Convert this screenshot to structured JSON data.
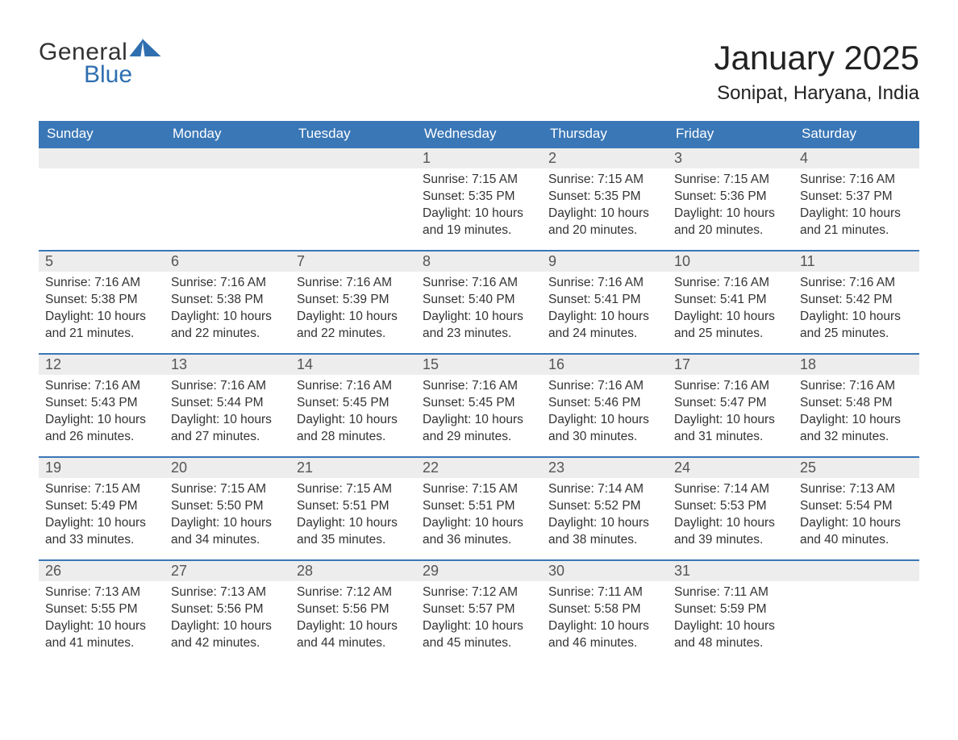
{
  "brand": {
    "word1": "General",
    "word2": "Blue"
  },
  "title": "January 2025",
  "location": "Sonipat, Haryana, India",
  "colors": {
    "header_bg": "#3a77b6",
    "header_text": "#ffffff",
    "daynum_bg": "#ededed",
    "daynum_border": "#3a77b6",
    "body_text": "#333333",
    "brand_blue": "#2f6fb0",
    "page_bg": "#ffffff"
  },
  "typography": {
    "month_title_fontsize": 42,
    "location_fontsize": 24,
    "weekday_fontsize": 17,
    "daynum_fontsize": 18,
    "body_fontsize": 15.5
  },
  "weekdays": [
    "Sunday",
    "Monday",
    "Tuesday",
    "Wednesday",
    "Thursday",
    "Friday",
    "Saturday"
  ],
  "labels": {
    "sunrise": "Sunrise:",
    "sunset": "Sunset:",
    "daylight": "Daylight:"
  },
  "weeks": [
    [
      {
        "empty": true
      },
      {
        "empty": true
      },
      {
        "empty": true
      },
      {
        "n": "1",
        "sunrise": "7:15 AM",
        "sunset": "5:35 PM",
        "daylight": "10 hours and 19 minutes."
      },
      {
        "n": "2",
        "sunrise": "7:15 AM",
        "sunset": "5:35 PM",
        "daylight": "10 hours and 20 minutes."
      },
      {
        "n": "3",
        "sunrise": "7:15 AM",
        "sunset": "5:36 PM",
        "daylight": "10 hours and 20 minutes."
      },
      {
        "n": "4",
        "sunrise": "7:16 AM",
        "sunset": "5:37 PM",
        "daylight": "10 hours and 21 minutes."
      }
    ],
    [
      {
        "n": "5",
        "sunrise": "7:16 AM",
        "sunset": "5:38 PM",
        "daylight": "10 hours and 21 minutes."
      },
      {
        "n": "6",
        "sunrise": "7:16 AM",
        "sunset": "5:38 PM",
        "daylight": "10 hours and 22 minutes."
      },
      {
        "n": "7",
        "sunrise": "7:16 AM",
        "sunset": "5:39 PM",
        "daylight": "10 hours and 22 minutes."
      },
      {
        "n": "8",
        "sunrise": "7:16 AM",
        "sunset": "5:40 PM",
        "daylight": "10 hours and 23 minutes."
      },
      {
        "n": "9",
        "sunrise": "7:16 AM",
        "sunset": "5:41 PM",
        "daylight": "10 hours and 24 minutes."
      },
      {
        "n": "10",
        "sunrise": "7:16 AM",
        "sunset": "5:41 PM",
        "daylight": "10 hours and 25 minutes."
      },
      {
        "n": "11",
        "sunrise": "7:16 AM",
        "sunset": "5:42 PM",
        "daylight": "10 hours and 25 minutes."
      }
    ],
    [
      {
        "n": "12",
        "sunrise": "7:16 AM",
        "sunset": "5:43 PM",
        "daylight": "10 hours and 26 minutes."
      },
      {
        "n": "13",
        "sunrise": "7:16 AM",
        "sunset": "5:44 PM",
        "daylight": "10 hours and 27 minutes."
      },
      {
        "n": "14",
        "sunrise": "7:16 AM",
        "sunset": "5:45 PM",
        "daylight": "10 hours and 28 minutes."
      },
      {
        "n": "15",
        "sunrise": "7:16 AM",
        "sunset": "5:45 PM",
        "daylight": "10 hours and 29 minutes."
      },
      {
        "n": "16",
        "sunrise": "7:16 AM",
        "sunset": "5:46 PM",
        "daylight": "10 hours and 30 minutes."
      },
      {
        "n": "17",
        "sunrise": "7:16 AM",
        "sunset": "5:47 PM",
        "daylight": "10 hours and 31 minutes."
      },
      {
        "n": "18",
        "sunrise": "7:16 AM",
        "sunset": "5:48 PM",
        "daylight": "10 hours and 32 minutes."
      }
    ],
    [
      {
        "n": "19",
        "sunrise": "7:15 AM",
        "sunset": "5:49 PM",
        "daylight": "10 hours and 33 minutes."
      },
      {
        "n": "20",
        "sunrise": "7:15 AM",
        "sunset": "5:50 PM",
        "daylight": "10 hours and 34 minutes."
      },
      {
        "n": "21",
        "sunrise": "7:15 AM",
        "sunset": "5:51 PM",
        "daylight": "10 hours and 35 minutes."
      },
      {
        "n": "22",
        "sunrise": "7:15 AM",
        "sunset": "5:51 PM",
        "daylight": "10 hours and 36 minutes."
      },
      {
        "n": "23",
        "sunrise": "7:14 AM",
        "sunset": "5:52 PM",
        "daylight": "10 hours and 38 minutes."
      },
      {
        "n": "24",
        "sunrise": "7:14 AM",
        "sunset": "5:53 PM",
        "daylight": "10 hours and 39 minutes."
      },
      {
        "n": "25",
        "sunrise": "7:13 AM",
        "sunset": "5:54 PM",
        "daylight": "10 hours and 40 minutes."
      }
    ],
    [
      {
        "n": "26",
        "sunrise": "7:13 AM",
        "sunset": "5:55 PM",
        "daylight": "10 hours and 41 minutes."
      },
      {
        "n": "27",
        "sunrise": "7:13 AM",
        "sunset": "5:56 PM",
        "daylight": "10 hours and 42 minutes."
      },
      {
        "n": "28",
        "sunrise": "7:12 AM",
        "sunset": "5:56 PM",
        "daylight": "10 hours and 44 minutes."
      },
      {
        "n": "29",
        "sunrise": "7:12 AM",
        "sunset": "5:57 PM",
        "daylight": "10 hours and 45 minutes."
      },
      {
        "n": "30",
        "sunrise": "7:11 AM",
        "sunset": "5:58 PM",
        "daylight": "10 hours and 46 minutes."
      },
      {
        "n": "31",
        "sunrise": "7:11 AM",
        "sunset": "5:59 PM",
        "daylight": "10 hours and 48 minutes."
      },
      {
        "empty": true
      }
    ]
  ]
}
